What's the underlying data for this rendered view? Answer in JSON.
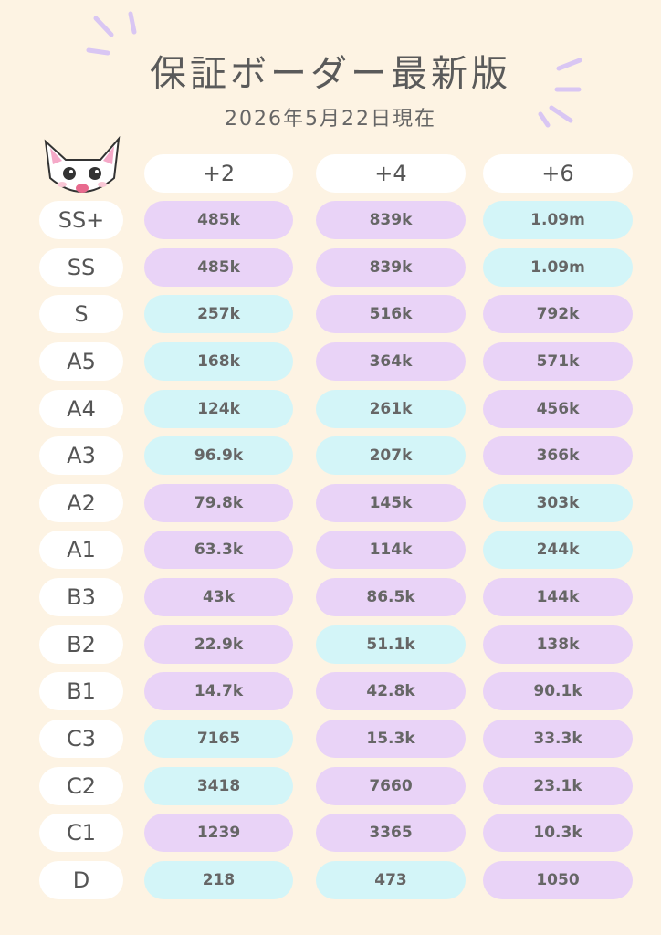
{
  "header": {
    "title": "保証ボーダー最新版",
    "subtitle": "2026年5月22日現在"
  },
  "table": {
    "columns": [
      "+2",
      "+4",
      "+6"
    ],
    "rows": [
      {
        "label": "SS+",
        "cells": [
          "485k",
          "839k",
          "1.09m"
        ]
      },
      {
        "label": "SS",
        "cells": [
          "485k",
          "839k",
          "1.09m"
        ]
      },
      {
        "label": "S",
        "cells": [
          "257k",
          "516k",
          "792k"
        ]
      },
      {
        "label": "A5",
        "cells": [
          "168k",
          "364k",
          "571k"
        ]
      },
      {
        "label": "A4",
        "cells": [
          "124k",
          "261k",
          "456k"
        ]
      },
      {
        "label": "A3",
        "cells": [
          "96.9k",
          "207k",
          "366k"
        ]
      },
      {
        "label": "A2",
        "cells": [
          "79.8k",
          "145k",
          "303k"
        ]
      },
      {
        "label": "A1",
        "cells": [
          "63.3k",
          "114k",
          "244k"
        ]
      },
      {
        "label": "B3",
        "cells": [
          "43k",
          "86.5k",
          "144k"
        ]
      },
      {
        "label": "B2",
        "cells": [
          "22.9k",
          "51.1k",
          "138k"
        ]
      },
      {
        "label": "B1",
        "cells": [
          "14.7k",
          "42.8k",
          "90.1k"
        ]
      },
      {
        "label": "C3",
        "cells": [
          "7165",
          "15.3k",
          "33.3k"
        ]
      },
      {
        "label": "C2",
        "cells": [
          "3418",
          "7660",
          "23.1k"
        ]
      },
      {
        "label": "C1",
        "cells": [
          "1239",
          "3365",
          "10.3k"
        ]
      },
      {
        "label": "D",
        "cells": [
          "218",
          "473",
          "1050"
        ]
      }
    ]
  }
}
